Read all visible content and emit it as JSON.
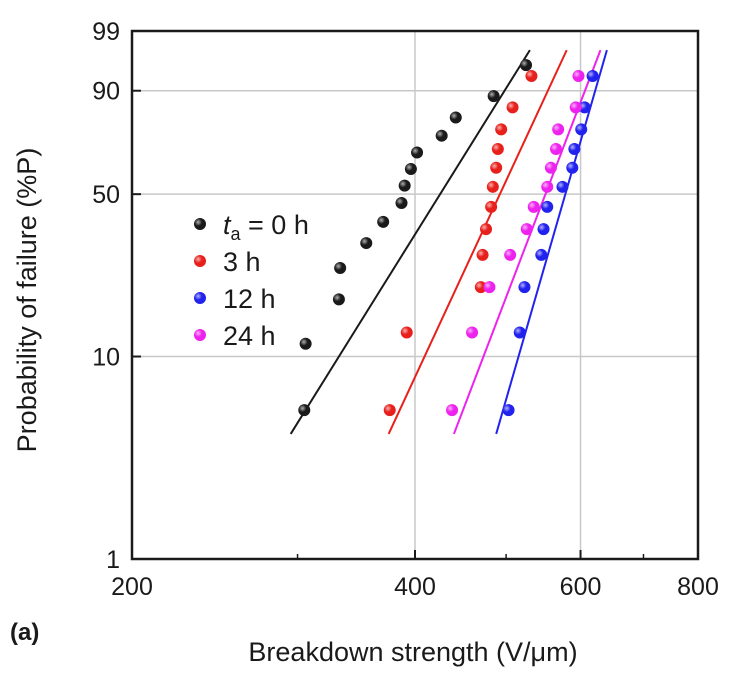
{
  "chart_data": {
    "type": "scatter",
    "panel_label": "(a)",
    "xlabel": "Breakdown strength (V/μm)",
    "ylabel": "Probability of  failure (%P)",
    "x_scale": "log",
    "y_scale": "weibull",
    "xlim": [
      200,
      800
    ],
    "ylim": [
      1,
      99
    ],
    "x_ticks": [
      200,
      400,
      600,
      800
    ],
    "y_ticks": [
      1,
      10,
      50,
      90,
      99
    ],
    "x_tick_labels": [
      "200",
      "400",
      "600",
      "800"
    ],
    "y_tick_labels": [
      "1",
      "10",
      "50",
      "90",
      "99"
    ],
    "grid": true,
    "legend_position": "center-left",
    "legend_header": {
      "italic": "t",
      "sub": "a",
      "rest": " = 0 h"
    },
    "series": [
      {
        "name": "t_a = 0 h",
        "legend_label": "",
        "color": "#1a1a1a",
        "points": [
          {
            "x": 305,
            "y": 5.5
          },
          {
            "x": 306,
            "y": 11.5
          },
          {
            "x": 332,
            "y": 18.5
          },
          {
            "x": 333,
            "y": 25.5
          },
          {
            "x": 355,
            "y": 32.5
          },
          {
            "x": 370,
            "y": 39.5
          },
          {
            "x": 387,
            "y": 46.5
          },
          {
            "x": 390,
            "y": 53.5
          },
          {
            "x": 396,
            "y": 60.5
          },
          {
            "x": 402,
            "y": 67.5
          },
          {
            "x": 427,
            "y": 74.5
          },
          {
            "x": 442,
            "y": 81.5
          },
          {
            "x": 485,
            "y": 88.5
          },
          {
            "x": 525,
            "y": 95.5
          }
        ],
        "fit": {
          "x": [
            295,
            530
          ],
          "y": [
            4.2,
            97.5
          ]
        }
      },
      {
        "name": "3 h",
        "legend_label": "3 h",
        "color": "#e8201c",
        "points": [
          {
            "x": 376,
            "y": 5.5
          },
          {
            "x": 392,
            "y": 13
          },
          {
            "x": 470,
            "y": 21
          },
          {
            "x": 472,
            "y": 29
          },
          {
            "x": 476,
            "y": 37
          },
          {
            "x": 482,
            "y": 45
          },
          {
            "x": 484,
            "y": 53
          },
          {
            "x": 488,
            "y": 61
          },
          {
            "x": 490,
            "y": 69
          },
          {
            "x": 494,
            "y": 77
          },
          {
            "x": 508,
            "y": 85
          },
          {
            "x": 532,
            "y": 93.5
          }
        ],
        "fit": {
          "x": [
            375,
            580
          ],
          "y": [
            4.2,
            97.5
          ]
        }
      },
      {
        "name": "12 h",
        "legend_label": "12 h",
        "color": "#2222ee",
        "points": [
          {
            "x": 503,
            "y": 5.5
          },
          {
            "x": 517,
            "y": 13
          },
          {
            "x": 523,
            "y": 21
          },
          {
            "x": 545,
            "y": 29
          },
          {
            "x": 548,
            "y": 37
          },
          {
            "x": 553,
            "y": 45
          },
          {
            "x": 574,
            "y": 53
          },
          {
            "x": 588,
            "y": 61
          },
          {
            "x": 591,
            "y": 69
          },
          {
            "x": 601,
            "y": 77
          },
          {
            "x": 606,
            "y": 85
          },
          {
            "x": 618,
            "y": 93.5
          }
        ],
        "fit": {
          "x": [
            488,
            640
          ],
          "y": [
            4.2,
            97.5
          ]
        }
      },
      {
        "name": "24 h",
        "legend_label": "24 h",
        "color": "#ee22ee",
        "points": [
          {
            "x": 438,
            "y": 5.5
          },
          {
            "x": 460,
            "y": 13
          },
          {
            "x": 480,
            "y": 21
          },
          {
            "x": 505,
            "y": 29
          },
          {
            "x": 526,
            "y": 37
          },
          {
            "x": 535,
            "y": 45
          },
          {
            "x": 553,
            "y": 53
          },
          {
            "x": 558,
            "y": 61
          },
          {
            "x": 565,
            "y": 69
          },
          {
            "x": 568,
            "y": 77
          },
          {
            "x": 593,
            "y": 85
          },
          {
            "x": 597,
            "y": 93.5
          }
        ],
        "fit": {
          "x": [
            440,
            630
          ],
          "y": [
            4.2,
            97.5
          ]
        }
      }
    ]
  }
}
